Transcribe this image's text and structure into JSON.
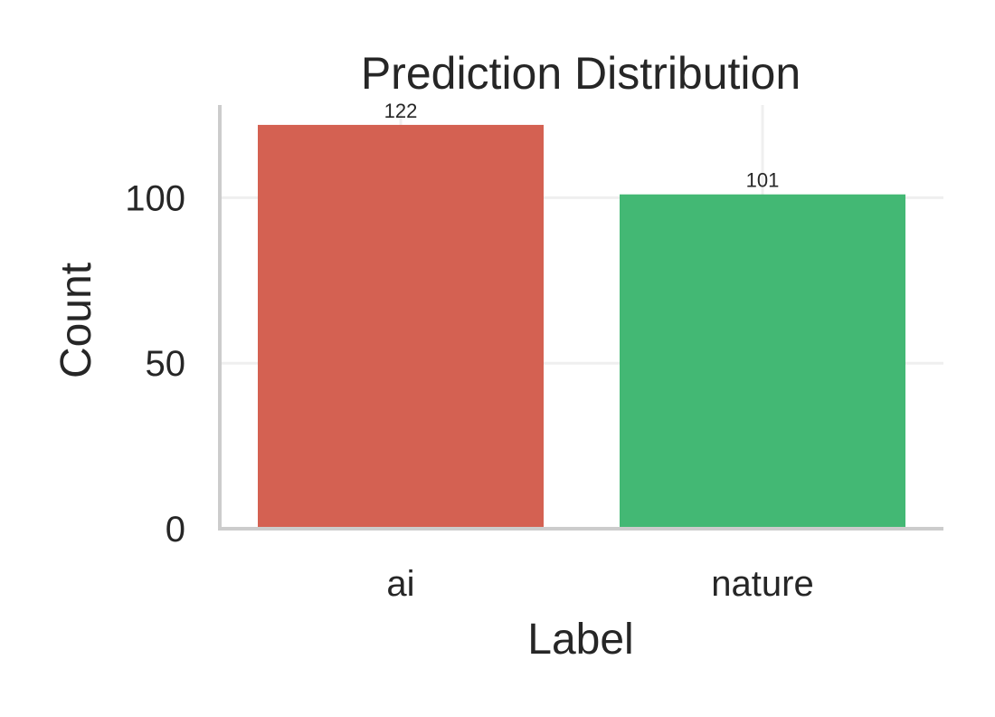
{
  "chart_data": {
    "type": "bar",
    "title": "Prediction Distribution",
    "xlabel": "Label",
    "ylabel": "Count",
    "categories": [
      "ai",
      "nature"
    ],
    "values": [
      122,
      101
    ],
    "data_labels": [
      "122",
      "101"
    ],
    "colors": [
      "#d46152",
      "#43b874"
    ],
    "ylim": [
      0,
      128
    ],
    "yticks": [
      0,
      50,
      100
    ],
    "ytick_labels": [
      "0",
      "50",
      "100"
    ],
    "grid": true,
    "legend": "none"
  }
}
